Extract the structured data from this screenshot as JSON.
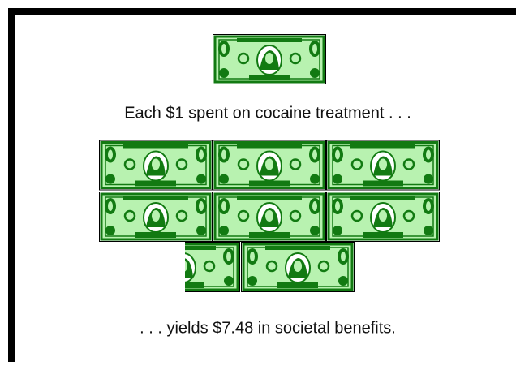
{
  "caption_top": "Each $1 spent on cocaine treatment . . .",
  "caption_bottom": ". . . yields $7.48 in societal benefits."
}
